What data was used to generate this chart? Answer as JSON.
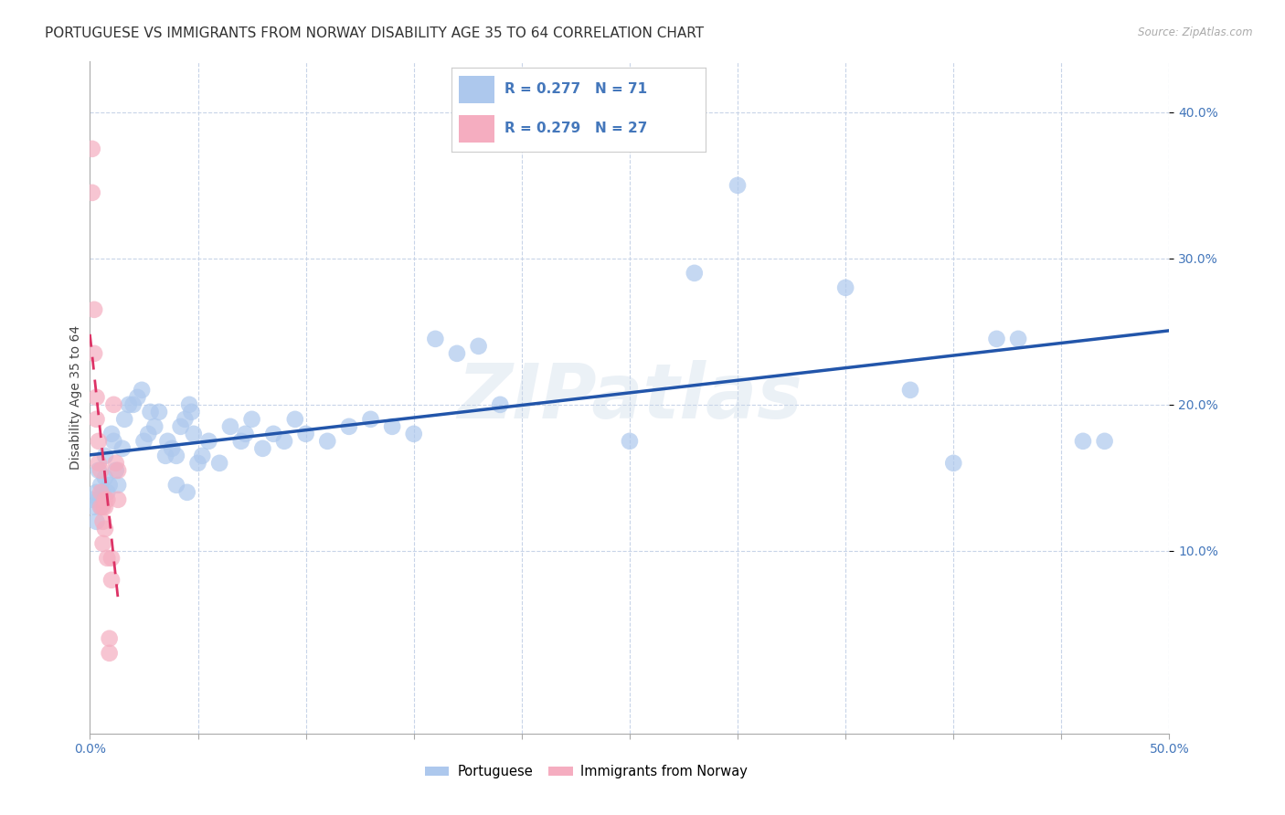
{
  "title": "PORTUGUESE VS IMMIGRANTS FROM NORWAY DISABILITY AGE 35 TO 64 CORRELATION CHART",
  "source": "Source: ZipAtlas.com",
  "ylabel": "Disability Age 35 to 64",
  "xlim": [
    0.0,
    0.5
  ],
  "ylim": [
    -0.025,
    0.435
  ],
  "r_portuguese": 0.277,
  "n_portuguese": 71,
  "r_norway": 0.279,
  "n_norway": 27,
  "blue_line_color": "#2255aa",
  "pink_line_color": "#dd3366",
  "dot_blue_color": "#adc8ed",
  "dot_pink_color": "#f5adc0",
  "dot_size": 180,
  "dot_alpha": 0.7,
  "grid_color": "#c8d4e8",
  "bg_color": "#ffffff",
  "title_fontsize": 11,
  "blue_scatter": [
    [
      0.001,
      0.135
    ],
    [
      0.002,
      0.13
    ],
    [
      0.003,
      0.14
    ],
    [
      0.003,
      0.12
    ],
    [
      0.004,
      0.155
    ],
    [
      0.004,
      0.135
    ],
    [
      0.005,
      0.13
    ],
    [
      0.005,
      0.145
    ],
    [
      0.006,
      0.14
    ],
    [
      0.007,
      0.165
    ],
    [
      0.007,
      0.15
    ],
    [
      0.008,
      0.14
    ],
    [
      0.009,
      0.145
    ],
    [
      0.01,
      0.18
    ],
    [
      0.011,
      0.175
    ],
    [
      0.012,
      0.155
    ],
    [
      0.013,
      0.145
    ],
    [
      0.015,
      0.17
    ],
    [
      0.016,
      0.19
    ],
    [
      0.018,
      0.2
    ],
    [
      0.02,
      0.2
    ],
    [
      0.022,
      0.205
    ],
    [
      0.024,
      0.21
    ],
    [
      0.025,
      0.175
    ],
    [
      0.027,
      0.18
    ],
    [
      0.028,
      0.195
    ],
    [
      0.03,
      0.185
    ],
    [
      0.032,
      0.195
    ],
    [
      0.035,
      0.165
    ],
    [
      0.036,
      0.175
    ],
    [
      0.038,
      0.17
    ],
    [
      0.04,
      0.145
    ],
    [
      0.04,
      0.165
    ],
    [
      0.042,
      0.185
    ],
    [
      0.044,
      0.19
    ],
    [
      0.045,
      0.14
    ],
    [
      0.046,
      0.2
    ],
    [
      0.047,
      0.195
    ],
    [
      0.048,
      0.18
    ],
    [
      0.05,
      0.16
    ],
    [
      0.052,
      0.165
    ],
    [
      0.055,
      0.175
    ],
    [
      0.06,
      0.16
    ],
    [
      0.065,
      0.185
    ],
    [
      0.07,
      0.175
    ],
    [
      0.072,
      0.18
    ],
    [
      0.075,
      0.19
    ],
    [
      0.08,
      0.17
    ],
    [
      0.085,
      0.18
    ],
    [
      0.09,
      0.175
    ],
    [
      0.095,
      0.19
    ],
    [
      0.1,
      0.18
    ],
    [
      0.11,
      0.175
    ],
    [
      0.12,
      0.185
    ],
    [
      0.13,
      0.19
    ],
    [
      0.14,
      0.185
    ],
    [
      0.15,
      0.18
    ],
    [
      0.16,
      0.245
    ],
    [
      0.17,
      0.235
    ],
    [
      0.18,
      0.24
    ],
    [
      0.19,
      0.2
    ],
    [
      0.25,
      0.175
    ],
    [
      0.28,
      0.29
    ],
    [
      0.3,
      0.35
    ],
    [
      0.35,
      0.28
    ],
    [
      0.38,
      0.21
    ],
    [
      0.4,
      0.16
    ],
    [
      0.42,
      0.245
    ],
    [
      0.43,
      0.245
    ],
    [
      0.46,
      0.175
    ],
    [
      0.47,
      0.175
    ]
  ],
  "pink_scatter": [
    [
      0.001,
      0.375
    ],
    [
      0.001,
      0.345
    ],
    [
      0.002,
      0.265
    ],
    [
      0.002,
      0.235
    ],
    [
      0.003,
      0.205
    ],
    [
      0.003,
      0.19
    ],
    [
      0.004,
      0.175
    ],
    [
      0.004,
      0.16
    ],
    [
      0.005,
      0.155
    ],
    [
      0.005,
      0.14
    ],
    [
      0.005,
      0.13
    ],
    [
      0.006,
      0.13
    ],
    [
      0.006,
      0.12
    ],
    [
      0.006,
      0.105
    ],
    [
      0.007,
      0.135
    ],
    [
      0.007,
      0.13
    ],
    [
      0.007,
      0.115
    ],
    [
      0.008,
      0.135
    ],
    [
      0.008,
      0.095
    ],
    [
      0.009,
      0.04
    ],
    [
      0.009,
      0.03
    ],
    [
      0.01,
      0.095
    ],
    [
      0.01,
      0.08
    ],
    [
      0.011,
      0.2
    ],
    [
      0.012,
      0.16
    ],
    [
      0.013,
      0.155
    ],
    [
      0.013,
      0.135
    ]
  ]
}
